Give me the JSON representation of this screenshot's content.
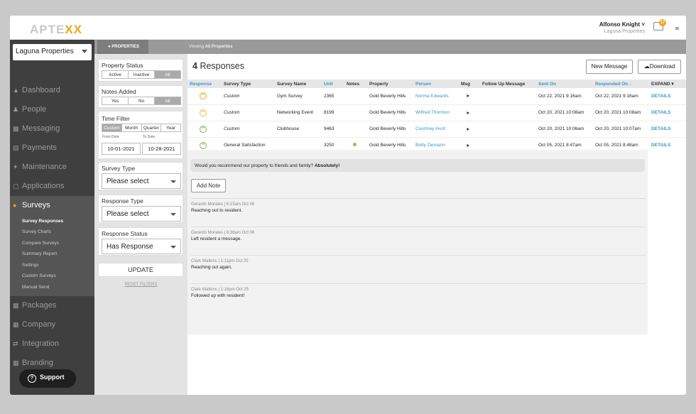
{
  "brand": {
    "logo_a": "APTE",
    "logo_b": "XX",
    "accent": "#f2a516",
    "link": "#3a97c9"
  },
  "user": {
    "name": "Alfonso Knight",
    "company": "Laguna Properties",
    "notifications": "17"
  },
  "sidebar": {
    "property": "Laguna Properties",
    "items": [
      {
        "label": "Dashboard",
        "icon": "dashboard-icon"
      },
      {
        "label": "People",
        "icon": "people-icon"
      },
      {
        "label": "Messaging",
        "icon": "messaging-icon"
      },
      {
        "label": "Payments",
        "icon": "payments-icon"
      },
      {
        "label": "Maintenance",
        "icon": "wrench-icon"
      },
      {
        "label": "Applications",
        "icon": "applications-icon"
      },
      {
        "label": "Surveys",
        "icon": "surveys-icon"
      },
      {
        "label": "Packages",
        "icon": "packages-icon"
      },
      {
        "label": "Company",
        "icon": "company-icon"
      },
      {
        "label": "Integration",
        "icon": "integration-icon"
      },
      {
        "label": "Branding",
        "icon": "branding-icon"
      }
    ],
    "sub": [
      "Survey Responses",
      "Survey Charts",
      "Compare Surveys",
      "Summary Report",
      "Settings",
      "Custom Surveys",
      "Manual Send"
    ],
    "support": "Support"
  },
  "filters": {
    "tab": "PROPERTIES",
    "viewing_prefix": "Viewing",
    "viewing_bold": "All Properties",
    "property_status": {
      "label": "Property Status",
      "opts": [
        "Active",
        "Inactive",
        "All"
      ]
    },
    "notes_added": {
      "label": "Notes Added",
      "opts": [
        "Yes",
        "No",
        "All"
      ]
    },
    "time_filter": {
      "label": "Time Filter",
      "opts": [
        "Custom",
        "Month",
        "Quarter",
        "Year"
      ],
      "from_label": "From Date",
      "to_label": "To Date",
      "from": "10-01-2021",
      "to": "10-28-2021"
    },
    "survey_type": {
      "label": "Survey Type",
      "value": "Please select"
    },
    "response_type": {
      "label": "Response Type",
      "value": "Please select"
    },
    "response_status": {
      "label": "Response Status",
      "value": "Has Response"
    },
    "update": "UPDATE",
    "reset": "RESET FILTERS"
  },
  "main": {
    "count": "4",
    "count_label": "Responses",
    "new_message": "New Message",
    "download": "Download",
    "columns": [
      "Response",
      "Survey Type",
      "Survey Name",
      "Unit",
      "Notes",
      "Property",
      "Person",
      "Msg",
      "Follow Up Message",
      "Sent On",
      "Responded On ↓",
      "EXPAND ▾"
    ],
    "rows": [
      {
        "face": "neutral",
        "survey_type": "Custom",
        "survey_name": "Gym Survey",
        "unit": "2365",
        "notes": "",
        "property": "Gold Beverly Hills",
        "person": "Norma Edwards",
        "sent": "Oct 22, 2021 9:16am",
        "responded": "Oct 22, 2021 9:16am",
        "details": "DETAILS"
      },
      {
        "face": "ok",
        "survey_type": "Custom",
        "survey_name": "Networking Event",
        "unit": "8199",
        "notes": "",
        "property": "Gold Beverly Hills",
        "person": "Wilfred Thornton",
        "sent": "Oct 20, 2021 10:08am",
        "responded": "Oct 20, 2021 10:08am",
        "details": "DETAILS"
      },
      {
        "face": "happy",
        "survey_type": "Custom",
        "survey_name": "Clubhouse",
        "unit": "9463",
        "notes": "",
        "property": "Gold Beverly Hills",
        "person": "Courtney Hunt",
        "sent": "Oct 20, 2021 10:06am",
        "responded": "Oct 20, 2021 10:07am",
        "details": "DETAILS"
      },
      {
        "face": "happy",
        "survey_type": "General Satisfaction",
        "survey_name": "",
        "unit": "3250",
        "notes": "dot",
        "property": "Gold Beverly Hills",
        "person": "Betty Ziemann",
        "sent": "Oct 05, 2021 8:47am",
        "responded": "Oct 05, 2021 8:48am",
        "details": "DETAILS"
      }
    ],
    "question": "Would you recommend our property to friends and family?",
    "answer": "Absolutely!",
    "add_note": "Add Note",
    "notes": [
      {
        "meta": "Gerardo Morales | 6:15am Oct 06",
        "text": "Reaching out to resident."
      },
      {
        "meta": "Gerardo Morales | 6:36am Oct 06",
        "text": "Left resident a message."
      },
      {
        "meta": "Clark Watkins | 1:11pm Oct 25",
        "text": "Reaching out again."
      },
      {
        "meta": "Clark Watkins | 1:16pm Oct 25",
        "text": "Followed up with resident!"
      }
    ]
  }
}
